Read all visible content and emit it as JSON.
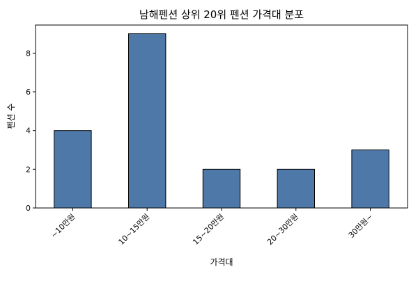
{
  "chart_data": {
    "type": "bar",
    "title": "남해펜션 상위 20위 펜션 가격대 분포",
    "xlabel": "가격대",
    "ylabel": "펜션 수",
    "categories": [
      "~10만원",
      "10~15만원",
      "15~20만원",
      "20~30만원",
      "30만원~"
    ],
    "values": [
      4,
      9,
      2,
      2,
      3
    ],
    "ylim": [
      0,
      9.45
    ],
    "yticks": [
      0,
      2,
      4,
      6,
      8
    ],
    "grid": false,
    "legend": "none",
    "bar_color": "#4e78a8",
    "edge_color": "#000000"
  }
}
